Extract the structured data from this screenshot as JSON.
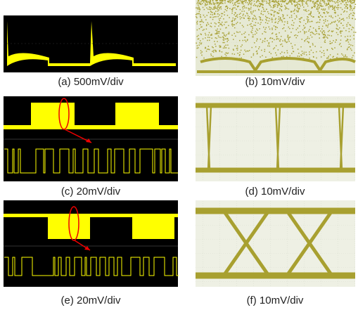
{
  "captions": [
    "(a) 500mV/div",
    "(b) 10mV/div",
    "(c) 20mV/div",
    "(d) 10mV/div",
    "(e) 20mV/div",
    "(f) 10mV/div"
  ]
}
